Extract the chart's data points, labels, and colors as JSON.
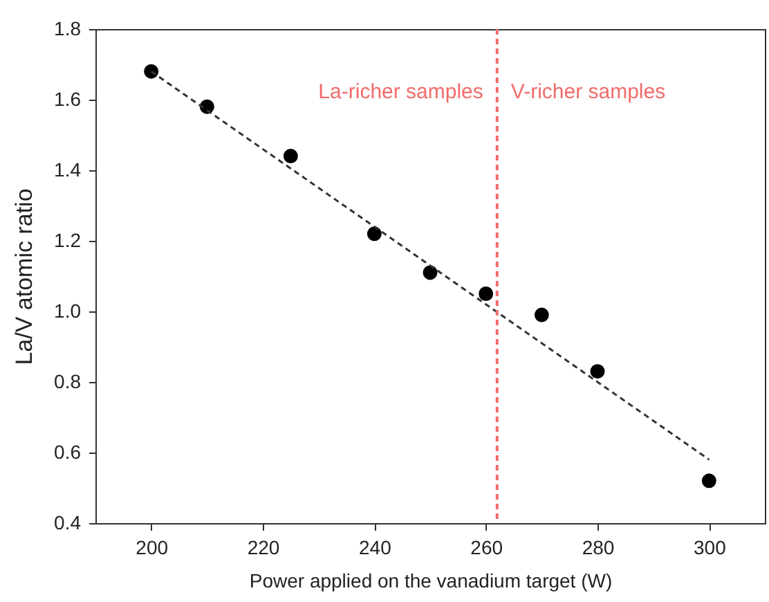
{
  "chart_data": {
    "type": "scatter",
    "xlabel": "Power applied on the vanadium target (W)",
    "ylabel": "La/V atomic ratio",
    "xlim": [
      190,
      310
    ],
    "xticks": [
      200,
      220,
      240,
      260,
      280,
      300
    ],
    "ylim": [
      0.4,
      1.8
    ],
    "yticks": [
      {
        "value": 0.4,
        "label": "0.4"
      },
      {
        "value": 0.6,
        "label": "0.6"
      },
      {
        "value": 0.8,
        "label": "0.8"
      },
      {
        "value": 1,
        "label": "1.0"
      },
      {
        "value": 1.2,
        "label": "1.2"
      },
      {
        "value": 1.4,
        "label": "1.4"
      },
      {
        "value": 1.6,
        "label": "1.6"
      },
      {
        "value": 1.8,
        "label": "1.8"
      }
    ],
    "grid": false,
    "series": [
      {
        "color": "#000000",
        "marker": "circle",
        "x": [
          200,
          210,
          225,
          240,
          250,
          260,
          270,
          280,
          300
        ],
        "values": [
          1.68,
          1.58,
          1.44,
          1.22,
          1.11,
          1.05,
          0.99,
          0.83,
          0.52
        ]
      },
      {
        "type": "line",
        "color": "#333333",
        "line_style": "dashed",
        "x": [
          200,
          300
        ],
        "values": [
          1.68,
          0.58
        ]
      }
    ],
    "ref_lines": [
      {
        "axis": "x",
        "value": 262,
        "color": "#f26b6b",
        "line_style": "dashed"
      }
    ],
    "annotations": [
      "La-richer samples",
      "V-richer samples"
    ]
  }
}
